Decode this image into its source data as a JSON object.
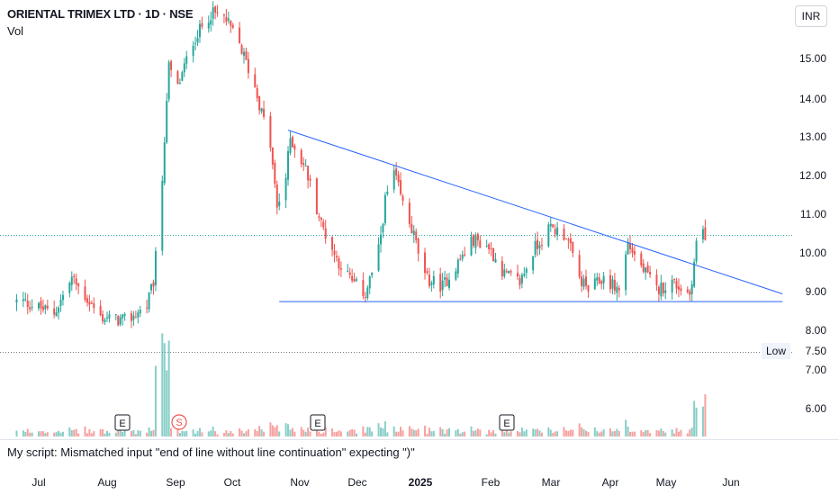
{
  "header": {
    "title": "ORIENTAL TRIMEX LTD · 1D · NSE",
    "subtitle": "Vol"
  },
  "currency": "INR",
  "status_message": "My script: Mismatched input \"end of line without line continuation\" expecting \")\"",
  "colors": {
    "up": "#26a69a",
    "down": "#ef5350",
    "trendline": "#2962ff",
    "grid_dotted": "#26a69a",
    "low_line": "#787b86"
  },
  "chart_data": {
    "type": "candlestick",
    "title": "ORIENTAL TRIMEX LTD · 1D · NSE",
    "y_ticks": [
      "15.00",
      "14.00",
      "13.00",
      "12.00",
      "11.00",
      "10.00",
      "9.00",
      "8.00",
      "7.50",
      "7.00",
      "6.00"
    ],
    "x_ticks": [
      "Jul",
      "Aug",
      "Sep",
      "Oct",
      "Nov",
      "Dec",
      "2025",
      "Feb",
      "Mar",
      "Apr",
      "May",
      "Jun"
    ],
    "ylim": [
      5.5,
      16.2
    ],
    "last_price_line": 10.5,
    "low_line": {
      "label": "Low",
      "value": 7.5
    },
    "trendlines": [
      {
        "name": "descending resistance",
        "from": {
          "date": "2024-10-22",
          "value": 13.2
        },
        "to": {
          "date": "2025-06-03",
          "value": 9.0
        }
      },
      {
        "name": "horizontal support",
        "from": {
          "date": "2024-10-18",
          "value": 8.8
        },
        "to": {
          "date": "2025-06-03",
          "value": 8.8
        }
      }
    ],
    "earnings_markers": [
      {
        "label": "E",
        "month": "Aug"
      },
      {
        "label": "E",
        "month": "Nov"
      },
      {
        "label": "E",
        "month": "Feb"
      }
    ],
    "split_markers": [
      {
        "label": "S",
        "month": "Sep"
      }
    ],
    "price_anchors": [
      [
        "2024-06-24",
        8.8
      ],
      [
        "2024-07-08",
        8.5
      ],
      [
        "2024-07-16",
        9.4
      ],
      [
        "2024-07-29",
        8.4
      ],
      [
        "2024-08-10",
        8.3
      ],
      [
        "2024-08-19",
        8.7
      ],
      [
        "2024-08-22",
        9.3
      ],
      [
        "2024-08-26",
        11.8
      ],
      [
        "2024-08-29",
        14.8
      ],
      [
        "2024-09-02",
        14.3
      ],
      [
        "2024-09-09",
        15.5
      ],
      [
        "2024-09-17",
        16.2
      ],
      [
        "2024-09-23",
        16.1
      ],
      [
        "2024-09-30",
        15.4
      ],
      [
        "2024-10-07",
        14.3
      ],
      [
        "2024-10-14",
        12.8
      ],
      [
        "2024-10-17",
        11.2
      ],
      [
        "2024-10-21",
        12.0
      ],
      [
        "2024-10-23",
        13.0
      ],
      [
        "2024-10-30",
        12.2
      ],
      [
        "2024-11-06",
        10.8
      ],
      [
        "2024-11-13",
        9.9
      ],
      [
        "2024-11-20",
        9.3
      ],
      [
        "2024-11-26",
        9.0
      ],
      [
        "2024-12-02",
        10.1
      ],
      [
        "2024-12-05",
        11.4
      ],
      [
        "2024-12-09",
        12.1
      ],
      [
        "2024-12-13",
        11.3
      ],
      [
        "2024-12-18",
        10.5
      ],
      [
        "2024-12-23",
        9.4
      ],
      [
        "2024-12-31",
        9.2
      ],
      [
        "2025-01-07",
        9.8
      ],
      [
        "2025-01-14",
        10.4
      ],
      [
        "2025-01-21",
        10.2
      ],
      [
        "2025-01-28",
        9.5
      ],
      [
        "2025-02-04",
        9.3
      ],
      [
        "2025-02-11",
        10.2
      ],
      [
        "2025-02-18",
        10.7
      ],
      [
        "2025-02-25",
        10.5
      ],
      [
        "2025-03-03",
        9.4
      ],
      [
        "2025-03-07",
        9.1
      ],
      [
        "2025-03-14",
        9.4
      ],
      [
        "2025-03-21",
        9.1
      ],
      [
        "2025-03-25",
        10.3
      ],
      [
        "2025-03-31",
        9.7
      ],
      [
        "2025-04-07",
        9.1
      ],
      [
        "2025-04-14",
        9.3
      ],
      [
        "2025-04-22",
        9.0
      ],
      [
        "2025-04-25",
        10.2
      ],
      [
        "2025-04-28",
        10.5
      ]
    ]
  }
}
